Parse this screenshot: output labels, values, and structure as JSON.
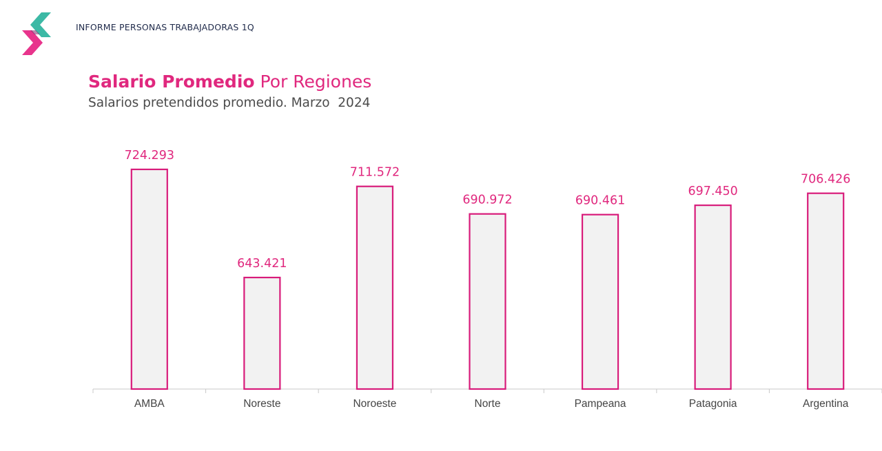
{
  "header": {
    "report_title": "INFORME PERSONAS TRABAJADORAS 1Q",
    "logo_icon": "brand-chevron-logo"
  },
  "colors": {
    "accent": "#e0287e",
    "bar_fill": "#f2f2f2",
    "bar_stroke": "#d81b7a",
    "axis": "#c8c8c8",
    "label_text": "#444444",
    "logo_teal": "#3cb9a5",
    "logo_pink": "#e8348c"
  },
  "chart_data": {
    "type": "bar",
    "title_bold": "Salario Promedio",
    "title_rest": " Por Regiones",
    "subtitle": "Salarios pretendidos promedio. Marzo  2024",
    "xlabel": "",
    "ylabel": "",
    "categories": [
      "AMBA",
      "Noreste",
      "Noroeste",
      "Norte",
      "Pampeana",
      "Patagonia",
      "Argentina"
    ],
    "values": [
      724293,
      643421,
      711572,
      690972,
      690461,
      697450,
      706426
    ],
    "value_labels": [
      "724.293",
      "643.421",
      "711.572",
      "690.972",
      "690.461",
      "697.450",
      "706.426"
    ],
    "ylim": [
      560000,
      724293
    ],
    "grid": false,
    "legend": "none"
  }
}
